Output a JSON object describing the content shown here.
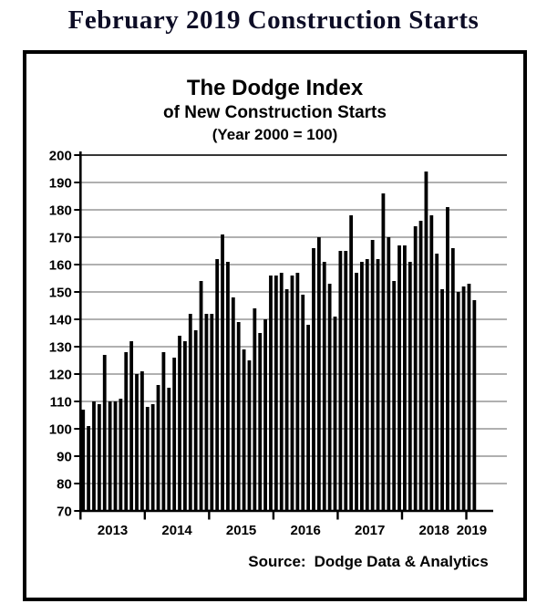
{
  "page": {
    "title": "February 2019 Construction Starts"
  },
  "chart": {
    "title_line1": "The Dodge Index",
    "title_line2": "of New Construction Starts",
    "title_line3": "(Year 2000 = 100)",
    "source_label": "Source:",
    "source_value": "Dodge Data & Analytics"
  },
  "chart_data": {
    "type": "bar",
    "title": "The Dodge Index of New Construction Starts (Year 2000 = 100)",
    "ylabel": "Dodge Index (Year 2000 = 100)",
    "xlabel": "",
    "ylim": [
      70,
      200
    ],
    "yticks": [
      70,
      80,
      90,
      100,
      110,
      120,
      130,
      140,
      150,
      160,
      170,
      180,
      190,
      200
    ],
    "grid": true,
    "legend": false,
    "bar_color": "#000000",
    "grid_color": "#808080",
    "axis_color": "#000000",
    "years": [
      "2013",
      "2014",
      "2015",
      "2016",
      "2017",
      "2018",
      "2019"
    ],
    "x_unit": "month",
    "values_by_year": {
      "2013": [
        107,
        101,
        110,
        109,
        127,
        110,
        110,
        111,
        128,
        132,
        120,
        121
      ],
      "2014": [
        108,
        109,
        116,
        128,
        115,
        126,
        134,
        132,
        142,
        136,
        154,
        142
      ],
      "2015": [
        142,
        162,
        171,
        161,
        148,
        139,
        129,
        125,
        144,
        135,
        140,
        156
      ],
      "2016": [
        156,
        157,
        151,
        156,
        157,
        149,
        138,
        166,
        170,
        161,
        153,
        141
      ],
      "2017": [
        165,
        165,
        178,
        157,
        161,
        162,
        169,
        162,
        186,
        170,
        154,
        167
      ],
      "2018": [
        167,
        161,
        174,
        176,
        194,
        178,
        164,
        151,
        181,
        166,
        150,
        152
      ],
      "2019": [
        153,
        147
      ]
    },
    "source": "Source: Dodge Data & Analytics"
  }
}
